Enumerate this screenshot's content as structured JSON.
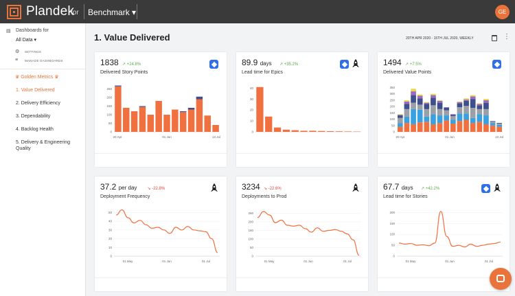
{
  "app": {
    "brand": "Plandek",
    "brand_suffix": "for",
    "dashboard_select": "Benchmark ▾",
    "user_initials": "GE",
    "accent_color": "#e8743b"
  },
  "sidebar": {
    "dashboards_for_label": "Dashboards for",
    "scope_select": "All Data ▾",
    "settings_label": "SETTINGS",
    "manage_label": "MANAGE DASHBOARDS",
    "golden_metrics_label": "Golden Metrics",
    "items": [
      {
        "label": "1. Value Delivered",
        "active": true
      },
      {
        "label": "2. Delivery Efficiency",
        "active": false
      },
      {
        "label": "3. Dependability",
        "active": false
      },
      {
        "label": "4. Backlog Health",
        "active": false
      },
      {
        "label": "5. Delivery & Engineering Quality",
        "active": false
      }
    ]
  },
  "main": {
    "title": "1. Value Delivered",
    "date_range": "20TH APR 2020 - 15TH JUL 2020, WEEKLY"
  },
  "cards": [
    {
      "value": "1838",
      "unit": "",
      "delta": "+24.8%",
      "delta_dir": "up",
      "metric": "Delivered Story Points",
      "icons": [
        "jira-icon"
      ]
    },
    {
      "value": "89.9",
      "unit": "days",
      "delta": "+35.2%",
      "delta_dir": "up",
      "metric": "Lead time for Epics",
      "icons": [
        "jira-icon",
        "rocket-icon"
      ]
    },
    {
      "value": "1494",
      "unit": "",
      "delta": "+7.5%",
      "delta_dir": "up",
      "metric": "Delivered Value Points",
      "icons": [
        "jira-icon"
      ]
    },
    {
      "value": "37.2",
      "unit": "per day",
      "delta": "-22.8%",
      "delta_dir": "down",
      "metric": "Deployment Frequency",
      "icons": [
        "rocket-icon"
      ]
    },
    {
      "value": "3234",
      "unit": "",
      "delta": "-22.6%",
      "delta_dir": "down",
      "metric": "Deployments to Prod",
      "icons": [
        "rocket-icon"
      ]
    },
    {
      "value": "67.7",
      "unit": "days",
      "delta": "+42.2%",
      "delta_dir": "up",
      "metric": "Lead time for Stories",
      "icons": [
        "jira-icon",
        "rocket-icon"
      ]
    }
  ],
  "chart_data": [
    {
      "type": "bar",
      "title": "Delivered Story Points",
      "x_ticks": [
        "20 Apr",
        "01 Jun",
        "13 Jul"
      ],
      "y_ticks": [
        "0",
        "50",
        "100",
        "150",
        "200",
        "250"
      ],
      "ylim": [
        0,
        280
      ],
      "series": [
        {
          "name": "",
          "color": "#f07040",
          "values": [
            265,
            140,
            120,
            145,
            100,
            180,
            100,
            130,
            115,
            130,
            190,
            95,
            40
          ]
        },
        {
          "name": "",
          "color": "#3f4e8c",
          "values": [
            5,
            0,
            0,
            5,
            0,
            0,
            0,
            0,
            5,
            10,
            15,
            0,
            0
          ]
        }
      ]
    },
    {
      "type": "bar",
      "title": "Lead time for Epics",
      "y_ticks": [
        "0",
        "10",
        "20",
        "30",
        "40"
      ],
      "ylim": [
        0,
        44
      ],
      "series": [
        {
          "name": "",
          "color": "#f07040",
          "values": [
            41,
            14,
            4,
            2,
            1.5,
            1,
            1,
            0.8,
            0.6,
            0.5,
            0.4,
            0.3
          ]
        }
      ]
    },
    {
      "type": "bar",
      "title": "Delivered Value Points",
      "x_ticks": [
        "20 Apr",
        "01 Jun",
        "13 Jul"
      ],
      "y_ticks": [
        "0",
        "50",
        "100",
        "150",
        "200",
        "250",
        "300",
        "350"
      ],
      "ylim": [
        0,
        380
      ],
      "series": [
        {
          "name": "",
          "color": "#f07040",
          "values": [
            40,
            70,
            60,
            75,
            80,
            60,
            70,
            90,
            65,
            85,
            95,
            70,
            80,
            60,
            50,
            40
          ]
        },
        {
          "name": "",
          "color": "#3aa0e0",
          "values": [
            30,
            50,
            120,
            100,
            40,
            80,
            60,
            40,
            30,
            60,
            50,
            40,
            60,
            70,
            20,
            15
          ]
        },
        {
          "name": "",
          "color": "#9aa0a6",
          "values": [
            40,
            60,
            50,
            40,
            60,
            70,
            50,
            40,
            30,
            50,
            60,
            80,
            40,
            50,
            10,
            10
          ]
        },
        {
          "name": "",
          "color": "#3f4e8c",
          "values": [
            20,
            40,
            60,
            50,
            40,
            60,
            50,
            20,
            10,
            30,
            40,
            70,
            30,
            50,
            5,
            5
          ]
        },
        {
          "name": "",
          "color": "#9c6bbf",
          "values": [
            5,
            20,
            30,
            20,
            10,
            20,
            15,
            5,
            5,
            10,
            10,
            20,
            10,
            20,
            0,
            0
          ]
        },
        {
          "name": "",
          "color": "#e8d84a",
          "values": [
            5,
            10,
            20,
            10,
            5,
            10,
            5,
            0,
            0,
            5,
            10,
            10,
            5,
            10,
            0,
            0
          ]
        }
      ]
    },
    {
      "type": "line",
      "title": "Deployment Frequency",
      "x_ticks": [
        "01 May",
        "01 Jun",
        "01 Jul"
      ],
      "y_ticks": [
        "0",
        "10",
        "20",
        "30",
        "40",
        "50"
      ],
      "ylim": [
        0,
        55
      ],
      "series": [
        {
          "name": "",
          "color": "#f07040",
          "values": [
            47,
            53,
            44,
            38,
            41,
            36,
            32,
            33,
            30,
            26,
            33,
            30,
            34,
            30,
            29,
            28,
            20,
            4
          ]
        }
      ]
    },
    {
      "type": "line",
      "title": "Deployments to Prod",
      "x_ticks": [
        "01 May",
        "01 Jun",
        "01 Jul"
      ],
      "y_ticks": [
        "0",
        "50",
        "100",
        "150",
        "200",
        "250"
      ],
      "ylim": [
        0,
        280
      ],
      "series": [
        {
          "name": "",
          "color": "#f07040",
          "values": [
            225,
            260,
            240,
            195,
            210,
            180,
            175,
            180,
            160,
            140,
            165,
            145,
            150,
            155,
            145,
            130,
            95,
            5
          ]
        }
      ]
    },
    {
      "type": "line",
      "title": "Lead time for Stories",
      "x_ticks": [
        "01 May",
        "01 Jun",
        "01 Jul"
      ],
      "y_ticks": [
        "0",
        "50",
        "100",
        "150",
        "200"
      ],
      "ylim": [
        0,
        220
      ],
      "series": [
        {
          "name": "",
          "color": "#f07040",
          "values": [
            60,
            55,
            58,
            50,
            52,
            48,
            60,
            205,
            90,
            45,
            50,
            42,
            55,
            45,
            50,
            55,
            58,
            65
          ]
        }
      ]
    }
  ]
}
